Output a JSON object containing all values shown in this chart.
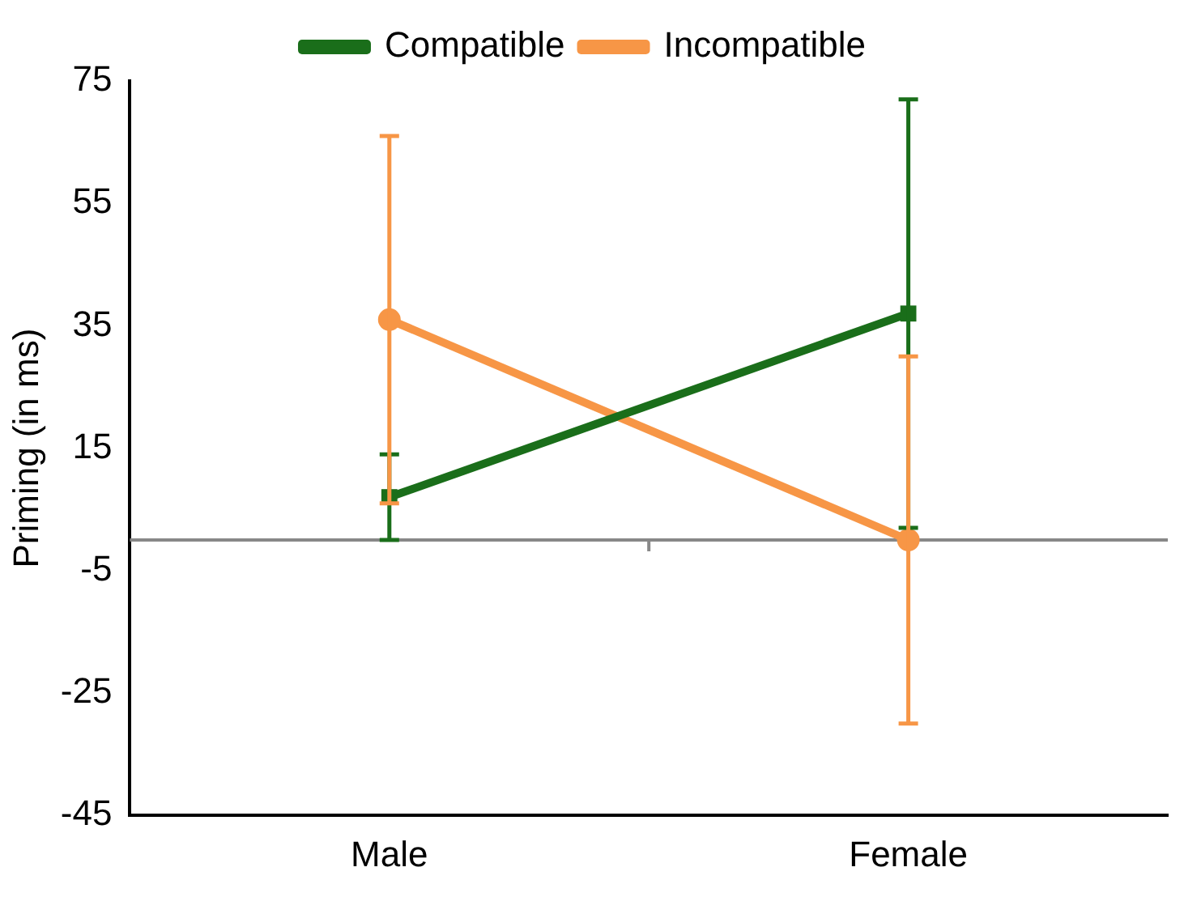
{
  "chart_data": {
    "type": "line",
    "ylabel": "Priming (in ms)",
    "categories": [
      "Male",
      "Female"
    ],
    "series": [
      {
        "name": "Compatible",
        "color": "#1a6e1a",
        "values": [
          7,
          37
        ],
        "errors": [
          7,
          35
        ],
        "marker": "square"
      },
      {
        "name": "Incompatible",
        "color": "#f79646",
        "values": [
          36,
          0
        ],
        "errors": [
          30,
          30
        ],
        "marker": "circle"
      }
    ],
    "ylim": [
      -45,
      75
    ],
    "yticks": [
      -45,
      -25,
      -5,
      15,
      35,
      55,
      75
    ],
    "grid": false,
    "legend": "top",
    "ref_lines": [
      {
        "axis": "y",
        "value": 0,
        "color": "#888888"
      }
    ],
    "line_style": "solid"
  }
}
